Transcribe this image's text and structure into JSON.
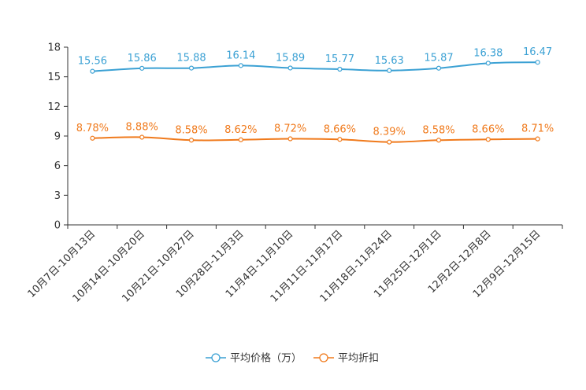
{
  "chart_data": {
    "type": "line",
    "title": "",
    "xlabel": "",
    "ylabel": "",
    "ylim": [
      0,
      18
    ],
    "yticks": [
      0,
      3,
      6,
      9,
      12,
      15,
      18
    ],
    "grid": false,
    "legend_position": "bottom-center",
    "categories": [
      "10月7日-10月13日",
      "10月14日-10月20日",
      "10月21日-10月27日",
      "10月28日-11月3日",
      "11月4日-11月10日",
      "11月11日-11月17日",
      "11月18日-11月24日",
      "11月25日-12月1日",
      "12月2日-12月8日",
      "12月9日-12月15日"
    ],
    "series": [
      {
        "name": "平均价格（万）",
        "color": "#3ba1d4",
        "values": [
          15.56,
          15.86,
          15.88,
          16.14,
          15.89,
          15.77,
          15.63,
          15.87,
          16.38,
          16.47
        ],
        "labels": [
          "15.56",
          "15.86",
          "15.88",
          "16.14",
          "15.89",
          "15.77",
          "15.63",
          "15.87",
          "16.38",
          "16.47"
        ]
      },
      {
        "name": "平均折扣",
        "color": "#f07a1c",
        "values": [
          8.78,
          8.88,
          8.58,
          8.62,
          8.72,
          8.66,
          8.39,
          8.58,
          8.66,
          8.71
        ],
        "labels": [
          "8.78%",
          "8.88%",
          "8.58%",
          "8.62%",
          "8.72%",
          "8.66%",
          "8.39%",
          "8.58%",
          "8.66%",
          "8.71%"
        ]
      }
    ]
  }
}
